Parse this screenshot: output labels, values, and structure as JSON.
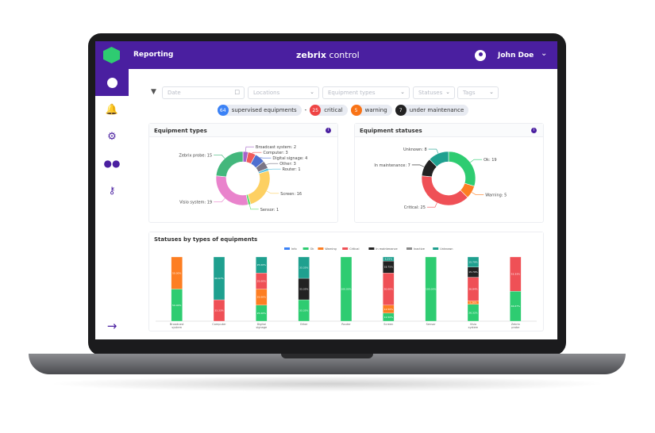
{
  "app": {
    "title_bold": "zebrix",
    "title_light": "control",
    "section": "Reporting",
    "user": "John Doe"
  },
  "sidebar": {
    "items": [
      {
        "icon": "dashboard-icon",
        "active": true
      },
      {
        "icon": "bell-icon"
      },
      {
        "icon": "gears-icon"
      },
      {
        "icon": "users-icon"
      },
      {
        "icon": "key-icon"
      }
    ],
    "bottom_icon": "arrow-right-icon"
  },
  "filters": {
    "date": "Date",
    "locations": "Locations",
    "equipment_types": "Equipment types",
    "statuses": "Statuses",
    "tags": "Tags"
  },
  "summary": [
    {
      "count": "64",
      "label": "supervised equipments",
      "color": "#3b82f6"
    },
    {
      "count": "25",
      "label": "critical",
      "color": "#ef4444"
    },
    {
      "count": "5",
      "label": "warning",
      "color": "#f97316"
    },
    {
      "count": "7",
      "label": "under maintenance",
      "color": "#222222"
    }
  ],
  "summary_sep": "-",
  "chart_data": [
    {
      "type": "pie",
      "title": "Equipment types",
      "donut": true,
      "labels": [
        "Broadcast system",
        "Computer",
        "Digital signage",
        "Other",
        "Router",
        "Screen",
        "Sensor",
        "Visio system",
        "Zebrix probe"
      ],
      "values": [
        2,
        3,
        4,
        3,
        1,
        16,
        1,
        19,
        15
      ],
      "colors": [
        "#a463c9",
        "#ef5b5b",
        "#4f6fd0",
        "#7a7585",
        "#5bc0de",
        "#fdd062",
        "#5fd86c",
        "#e983cc",
        "#43b77c"
      ]
    },
    {
      "type": "pie",
      "title": "Equipment statuses",
      "donut": true,
      "labels": [
        "Ok",
        "Warning",
        "Critical",
        "In maintenance",
        "Unknown"
      ],
      "values": [
        19,
        5,
        25,
        7,
        8
      ],
      "colors": [
        "#2ecc71",
        "#fd7e22",
        "#ef5056",
        "#222222",
        "#1fa08f"
      ]
    },
    {
      "type": "bar",
      "stacked": true,
      "title": "Statuses by types of equipments",
      "categories": [
        "Broadcast system",
        "Computer",
        "Digital signage",
        "Other",
        "Router",
        "Screen",
        "Sensor",
        "Visio system",
        "Zebrix probe"
      ],
      "legend": [
        "Info",
        "Ok",
        "Warning",
        "Critical",
        "In maintenance",
        "Inactive",
        "Unknown"
      ],
      "legend_colors": [
        "#3b82f6",
        "#2ecc71",
        "#fd7e22",
        "#ef5056",
        "#222222",
        "#888888",
        "#1fa08f"
      ],
      "series": [
        {
          "name": "Ok",
          "color": "#2ecc71",
          "values": [
            50,
            0,
            25,
            33.33,
            100,
            12.5,
            100,
            26.32,
            46.67
          ]
        },
        {
          "name": "Warning",
          "color": "#fd7e22",
          "values": [
            50,
            0,
            25,
            0,
            0,
            12.5,
            0,
            5.26,
            0
          ]
        },
        {
          "name": "Critical",
          "color": "#ef5056",
          "values": [
            0,
            33.33,
            25,
            0,
            0,
            50,
            0,
            36.84,
            53.33
          ]
        },
        {
          "name": "In maintenance",
          "color": "#222222",
          "values": [
            0,
            0,
            0,
            33.33,
            0,
            18.75,
            0,
            15.79,
            0
          ]
        },
        {
          "name": "Unknown",
          "color": "#1fa08f",
          "values": [
            0,
            66.67,
            25,
            33.33,
            0,
            6.25,
            0,
            15.79,
            0
          ]
        }
      ],
      "ylim": [
        0,
        100
      ],
      "unit": "%"
    }
  ]
}
